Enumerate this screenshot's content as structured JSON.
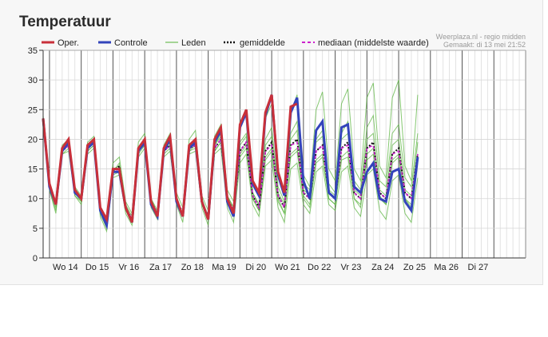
{
  "page": {
    "title": "Temperatuur"
  },
  "chart_data": {
    "type": "line",
    "ylim": [
      0,
      35
    ],
    "yticks": [
      0,
      5,
      10,
      15,
      20,
      25,
      30,
      35
    ],
    "x_points": 77,
    "day_labels": [
      "Wo 14",
      "Do 15",
      "Vr 16",
      "Za 17",
      "Zo 18",
      "Ma 19",
      "Di 20",
      "Wo 21",
      "Do 22",
      "Vr 23",
      "Za 24",
      "Zo 25",
      "Ma 26",
      "Di 27"
    ],
    "grid": true,
    "legend": {
      "oper": "Oper.",
      "controle": "Controle",
      "leden": "Leden",
      "gemiddelde": "gemiddelde",
      "mediaan": "mediaan (middelste waarde)"
    },
    "source_lines": [
      "Weerplaza.nl - regio midden",
      "Gemaakt: di 13 mei 21:52"
    ],
    "colors": {
      "oper": "#c8303a",
      "controle": "#3344bb",
      "leden": "#52b036",
      "gemiddelde": "#111111",
      "mediaan": "#cc22cc"
    },
    "series": [
      {
        "name": "Oper.",
        "values": [
          23.5,
          12.5,
          9.0,
          18.5,
          20.0,
          11.5,
          10.0,
          19.0,
          20.0,
          8.5,
          6.5,
          15.0,
          15.0,
          8.5,
          6.0,
          18.5,
          20.0,
          9.5,
          7.0,
          18.5,
          20.5,
          10.0,
          7.0,
          19.0,
          20.0,
          9.5,
          6.5,
          20.0,
          22.0,
          10.0,
          7.5,
          22.5,
          25.0,
          13.0,
          11.0,
          24.5,
          27.5,
          14.5,
          11.0,
          25.5,
          26.0
        ]
      },
      {
        "name": "Controle",
        "values": [
          23.5,
          12.0,
          9.0,
          18.0,
          19.5,
          11.0,
          10.0,
          18.5,
          19.5,
          8.0,
          5.5,
          14.5,
          14.5,
          8.5,
          6.0,
          18.0,
          19.5,
          9.0,
          7.0,
          18.0,
          20.0,
          9.5,
          7.0,
          18.5,
          19.5,
          9.5,
          6.5,
          19.5,
          21.5,
          9.5,
          7.0,
          22.0,
          24.5,
          12.5,
          10.5,
          24.0,
          27.5,
          14.0,
          10.5,
          24.5,
          27.0,
          13.0,
          10.0,
          21.5,
          23.0,
          11.0,
          10.0,
          22.0,
          22.5,
          12.0,
          11.0,
          14.5,
          16.0,
          10.0,
          9.5,
          14.5,
          15.0,
          9.5,
          8.0,
          17.0
        ]
      },
      {
        "name": "gemiddelde",
        "values": [
          23.5,
          12.0,
          9.0,
          18.0,
          19.0,
          11.0,
          10.0,
          18.5,
          19.5,
          8.0,
          6.0,
          14.5,
          15.5,
          8.5,
          6.5,
          18.0,
          19.5,
          9.5,
          7.5,
          18.0,
          19.0,
          10.0,
          7.5,
          18.5,
          19.0,
          9.5,
          7.0,
          18.5,
          20.0,
          10.0,
          8.0,
          18.0,
          19.5,
          10.5,
          8.5,
          18.0,
          19.5,
          10.5,
          8.5,
          19.0,
          20.0,
          11.0,
          10.0,
          18.0,
          19.0,
          11.0,
          10.0,
          18.5,
          19.5,
          11.0,
          10.0,
          18.5,
          19.5,
          11.0,
          10.0,
          17.5,
          18.5,
          11.0,
          10.0,
          17.5
        ]
      },
      {
        "name": "mediaan (middelste waarde)",
        "values": [
          23.5,
          12.0,
          9.0,
          18.0,
          19.0,
          11.0,
          10.0,
          18.5,
          19.5,
          8.0,
          6.0,
          14.5,
          15.0,
          8.5,
          6.5,
          18.0,
          19.5,
          9.5,
          7.5,
          18.0,
          19.0,
          10.0,
          7.5,
          18.5,
          19.0,
          9.5,
          7.0,
          18.5,
          20.0,
          10.0,
          8.0,
          18.0,
          19.5,
          10.5,
          8.5,
          18.0,
          19.0,
          10.5,
          8.5,
          19.0,
          19.5,
          11.0,
          10.0,
          18.0,
          19.0,
          11.0,
          10.0,
          18.5,
          19.0,
          11.0,
          10.0,
          18.5,
          19.0,
          11.0,
          10.0,
          17.5,
          18.0,
          11.0,
          10.0,
          17.5
        ]
      },
      {
        "name": "Leden",
        "members": [
          [
            23.5,
            12.0,
            8.5,
            18.5,
            19.0,
            11.5,
            10.0,
            18.5,
            19.5,
            8.5,
            5.5,
            15.0,
            15.5,
            8.5,
            6.5,
            18.5,
            20.0,
            10.0,
            7.5,
            18.5,
            19.5,
            10.5,
            7.0,
            19.0,
            19.5,
            9.0,
            7.0,
            19.0,
            21.0,
            10.5,
            8.5,
            19.5,
            21.0,
            11.0,
            9.0,
            20.0,
            22.0,
            12.0,
            9.5,
            21.0,
            23.0,
            12.5,
            11.5,
            20.0,
            21.5,
            12.5,
            11.0,
            21.0,
            23.0,
            13.0,
            11.5,
            22.0,
            24.0,
            13.0,
            12.0,
            21.0,
            22.5,
            13.5,
            12.0,
            21.0
          ],
          [
            23.0,
            11.5,
            7.5,
            17.5,
            18.0,
            10.5,
            9.0,
            17.5,
            18.5,
            7.0,
            4.5,
            13.5,
            14.0,
            7.5,
            5.5,
            17.0,
            18.5,
            8.5,
            6.5,
            17.0,
            18.0,
            9.0,
            6.0,
            17.5,
            18.0,
            8.5,
            5.5,
            17.5,
            18.5,
            8.5,
            6.0,
            16.0,
            17.5,
            9.0,
            7.0,
            15.5,
            16.5,
            8.5,
            6.0,
            15.0,
            16.0,
            9.0,
            7.5,
            14.5,
            15.5,
            9.0,
            8.0,
            14.5,
            15.5,
            8.5,
            7.0,
            14.0,
            15.0,
            8.0,
            6.5,
            13.0,
            14.0,
            7.5,
            6.0,
            13.5
          ],
          [
            24.0,
            12.5,
            9.5,
            19.0,
            20.0,
            12.0,
            10.5,
            19.5,
            20.5,
            8.5,
            6.5,
            16.0,
            17.0,
            9.5,
            7.5,
            19.5,
            21.0,
            10.0,
            8.0,
            19.0,
            21.0,
            11.0,
            8.5,
            20.0,
            21.5,
            10.5,
            8.0,
            20.5,
            22.5,
            11.5,
            9.5,
            23.0,
            24.0,
            12.5,
            10.5,
            23.5,
            26.0,
            13.5,
            11.0,
            24.5,
            27.5,
            14.0,
            12.0,
            25.0,
            28.0,
            15.0,
            13.0,
            26.0,
            28.5,
            15.0,
            13.0,
            27.0,
            29.5,
            15.5,
            13.5,
            27.0,
            30.0,
            15.5,
            13.0,
            27.5
          ],
          [
            23.5,
            12.0,
            9.0,
            18.0,
            19.5,
            11.0,
            9.5,
            18.0,
            19.0,
            8.0,
            6.0,
            14.5,
            16.0,
            9.0,
            7.0,
            18.0,
            19.0,
            9.5,
            7.5,
            18.0,
            19.5,
            10.0,
            7.5,
            18.0,
            19.0,
            9.5,
            7.0,
            18.0,
            19.5,
            9.5,
            7.5,
            17.0,
            18.5,
            10.0,
            8.0,
            17.0,
            18.5,
            10.0,
            7.5,
            17.5,
            18.5,
            10.5,
            9.0,
            16.0,
            17.0,
            10.0,
            9.0,
            16.5,
            17.0,
            10.0,
            9.0,
            16.5,
            17.5,
            10.0,
            9.0,
            16.0,
            17.0,
            10.0,
            8.5,
            16.0
          ],
          [
            23.5,
            12.5,
            9.0,
            18.5,
            19.0,
            11.0,
            10.0,
            19.0,
            19.5,
            8.0,
            6.0,
            15.0,
            15.0,
            8.5,
            6.5,
            18.5,
            19.5,
            9.5,
            7.5,
            18.5,
            19.0,
            10.0,
            7.5,
            18.5,
            19.5,
            10.0,
            7.0,
            19.0,
            20.5,
            10.5,
            8.5,
            19.0,
            20.5,
            11.0,
            9.0,
            19.0,
            20.5,
            11.0,
            9.0,
            20.0,
            21.5,
            11.5,
            10.5,
            19.5,
            20.5,
            11.5,
            10.5,
            20.0,
            21.0,
            11.5,
            10.5,
            20.0,
            21.0,
            11.5,
            10.5,
            19.0,
            20.0,
            11.5,
            10.5,
            19.5
          ],
          [
            23.0,
            11.5,
            8.0,
            17.5,
            18.5,
            10.5,
            9.5,
            18.0,
            19.0,
            7.5,
            5.0,
            14.0,
            14.5,
            8.0,
            6.0,
            17.5,
            19.0,
            9.0,
            7.0,
            17.5,
            18.5,
            9.5,
            7.0,
            18.0,
            18.5,
            9.0,
            6.5,
            18.0,
            19.5,
            9.5,
            7.5,
            17.5,
            19.0,
            10.0,
            8.0,
            16.5,
            18.0,
            9.5,
            7.5,
            17.0,
            18.0,
            10.0,
            8.5,
            16.5,
            17.5,
            10.0,
            9.0,
            17.0,
            18.0,
            10.0,
            8.5,
            17.5,
            18.5,
            10.5,
            9.0,
            16.5,
            17.5,
            10.0,
            9.0,
            16.5
          ]
        ]
      }
    ]
  }
}
